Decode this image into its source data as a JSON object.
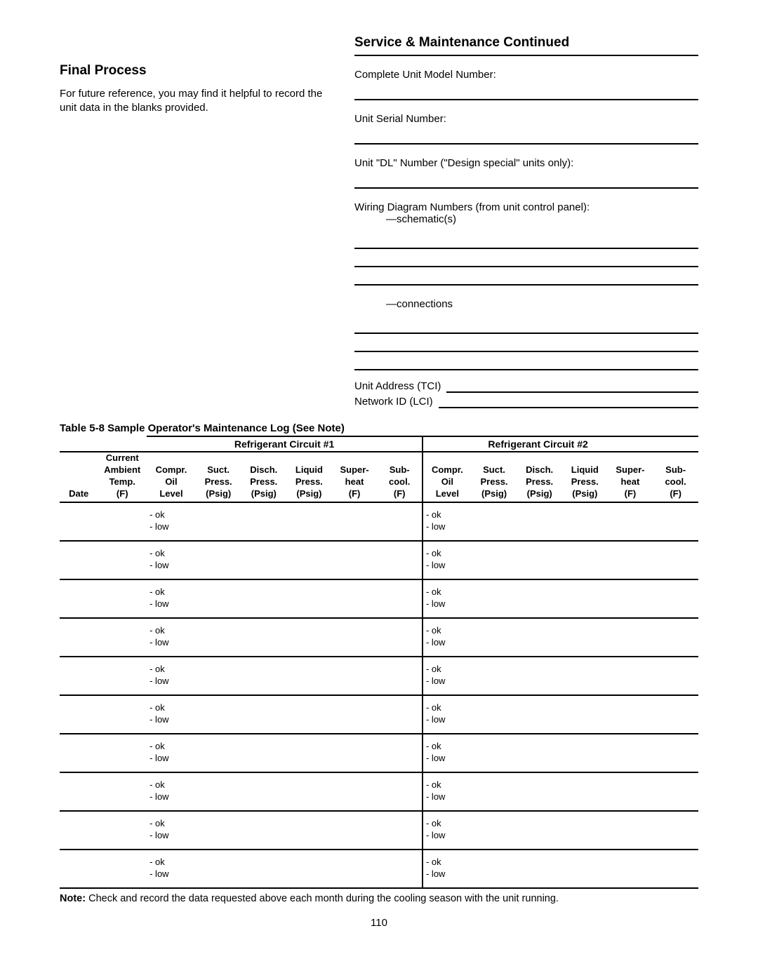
{
  "header": {
    "main_title": "Service & Maintenance Continued",
    "section_title": "Final Process",
    "intro_text": "For future reference, you may find it helpful to record the unit data in the blanks provided."
  },
  "fields": {
    "model_number": "Complete Unit Model Number:",
    "serial_number": "Unit Serial Number:",
    "dl_number": "Unit \"DL\" Number (\"Design special\" units only):",
    "wiring": "Wiring Diagram Numbers (from unit control panel):",
    "schematics": "—schematic(s)",
    "connections": "—connections",
    "unit_address": "Unit Address (TCI)",
    "network_id": "Network ID (LCI)"
  },
  "table": {
    "title": "Table 5-8 Sample Operator's Maintenance Log (See Note)",
    "circuit1": "Refrigerant Circuit #1",
    "circuit2": "Refrigerant Circuit #2",
    "current_label": "Current",
    "columns": {
      "date": [
        "Date",
        "",
        ""
      ],
      "ambient": [
        "Ambient",
        "Temp.",
        "(F)"
      ],
      "oil": [
        "Compr.",
        "Oil",
        "Level"
      ],
      "suct": [
        "Suct.",
        "Press.",
        "(Psig)"
      ],
      "disch": [
        "Disch.",
        "Press.",
        "(Psig)"
      ],
      "liquid": [
        "Liquid",
        "Press.",
        "(Psig)"
      ],
      "superheat": [
        "Super-",
        "heat",
        "(F)"
      ],
      "subcool": [
        "Sub-",
        "cool.",
        "(F)"
      ]
    },
    "row_count": 10,
    "cell_ok": "- ok",
    "cell_low": "- low"
  },
  "note_label": "Note:",
  "note_text": " Check and record the data requested above each month during the cooling season with the unit running.",
  "page_number": "110",
  "style": {
    "border_color": "#000000",
    "background": "#ffffff",
    "font_family": "Arial"
  }
}
